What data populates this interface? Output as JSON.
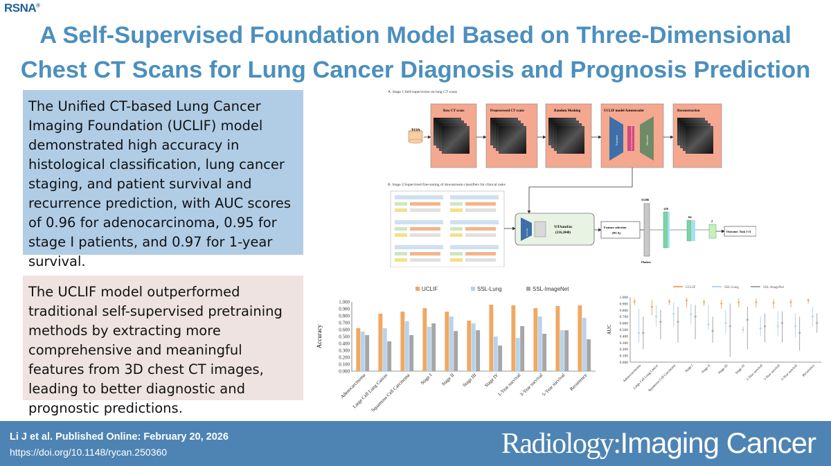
{
  "logo": {
    "text": "RSNA"
  },
  "title": {
    "line1": "A Self-Supervised Foundation Model Based on Three-Dimensional",
    "line2": "Chest CT Scans for Lung Cancer Diagnosis and Prognosis Prediction"
  },
  "summary": {
    "text1": "The Unified CT-based Lung Cancer Imaging Foundation (UCLIF) model demonstrated high accuracy in histological classification, lung cancer staging, and patient survival and recurrence prediction, with AUC scores of 0.96 for adenocarcinoma, 0.95 for stage I patients, and 0.97 for 1-year survival.",
    "text2": "The UCLIF model outperformed traditional self-supervised pretraining methods by extracting more comprehensive and meaningful features from 3D chest CT images, leading to better diagnostic and prognostic predictions."
  },
  "pipeline": {
    "stage1_title": "A. Stage 1:Self-supervision on lung CT scans",
    "stage2_title": "B. Stage 2:Supervised fine-tuning of downstream classifiers for clinical tasks",
    "tcia": "TCIA",
    "boxes": [
      "Raw CT scans",
      "Preprocessed CT scans",
      "Random Masking",
      "UCLIF model Autoencoder",
      "Reconstruction"
    ],
    "encoder": "Encoder",
    "decoder": "Decoder",
    "latent": "Compressed Representation",
    "encoder2": "Encoder",
    "vit_line1": "ViTAutoEnc",
    "vit_line2": "(216,2048)",
    "feat_line1": "Feature selection",
    "feat_line2": "(PCA)",
    "dims": [
      "55296",
      "128",
      "64",
      "2"
    ],
    "flatten": "Flatten",
    "outcome": "Outcome: Task 1-11"
  },
  "chart_data": [
    {
      "type": "bar",
      "title": "",
      "ylabel": "Accuracy",
      "xlabel": "",
      "ylim": [
        0,
        1.0
      ],
      "yticks": [
        "0.000",
        "0.100",
        "0.200",
        "0.300",
        "0.400",
        "0.500",
        "0.600",
        "0.700",
        "0.800",
        "0.900",
        "1.000"
      ],
      "categories": [
        "Adenocarcinoma",
        "Large Cell Lung Cancer",
        "Squamous Cell Carcinoma",
        "Stage I",
        "Stage II",
        "Stage III",
        "Stage IV",
        "1-Year survival",
        "3-Year survival",
        "5-Year survival",
        "Recurrence"
      ],
      "series": [
        {
          "name": "UCLIF",
          "color": "#f0a862",
          "values": [
            0.62,
            0.83,
            0.86,
            0.91,
            0.86,
            0.73,
            0.96,
            0.95,
            0.91,
            0.94,
            0.95
          ]
        },
        {
          "name": "SSL-Lung",
          "color": "#b7d3ec",
          "values": [
            0.57,
            0.62,
            0.72,
            0.64,
            0.79,
            0.69,
            0.5,
            0.48,
            0.79,
            0.59,
            0.77
          ]
        },
        {
          "name": "SSL-ImageNet",
          "color": "#a6a6a6",
          "values": [
            0.52,
            0.43,
            0.52,
            0.69,
            0.58,
            0.59,
            0.37,
            0.65,
            0.54,
            0.59,
            0.46
          ]
        }
      ]
    },
    {
      "type": "box",
      "title": "",
      "ylabel": "AUC",
      "ylim": [
        0,
        1.0
      ],
      "yticks": [
        "0.000",
        "0.100",
        "0.200",
        "0.300",
        "0.400",
        "0.500",
        "0.600",
        "0.700",
        "0.800",
        "0.900",
        "1.000"
      ],
      "categories": [
        "Adenocarcinoma",
        "Large Cell Lung Cancer",
        "Squamous Cell Carcinoma",
        "Stage I",
        "Stage II",
        "Stage III",
        "Stage IV",
        "1-Year survival",
        "3-Year survival",
        "5-Year survival",
        "Recurrence"
      ],
      "series": [
        {
          "name": "UCLIF",
          "color": "#f0a862",
          "lows": [
            0.88,
            0.72,
            0.88,
            0.84,
            0.86,
            0.82,
            0.84,
            0.84,
            0.82,
            0.84,
            0.9
          ],
          "highs": [
            0.98,
            0.96,
            0.97,
            0.99,
            0.97,
            0.96,
            0.98,
            0.98,
            0.97,
            0.97,
            0.98
          ],
          "medians": [
            0.93,
            0.85,
            0.93,
            0.95,
            0.92,
            0.9,
            0.92,
            0.92,
            0.91,
            0.92,
            0.95
          ]
        },
        {
          "name": "SSL-Lung",
          "color": "#b7d3ec",
          "lows": [
            0.3,
            0.55,
            0.55,
            0.58,
            0.5,
            0.45,
            0.45,
            0.4,
            0.4,
            0.38,
            0.55
          ],
          "highs": [
            0.82,
            0.88,
            0.92,
            0.9,
            0.88,
            0.8,
            0.55,
            0.7,
            0.78,
            0.75,
            0.85
          ],
          "medians": [
            0.45,
            0.7,
            0.74,
            0.74,
            0.58,
            0.6,
            0.5,
            0.52,
            0.55,
            0.55,
            0.7
          ]
        },
        {
          "name": "SSL-ImageNet",
          "color": "#a6a6a6",
          "lows": [
            0.2,
            0.35,
            0.3,
            0.35,
            0.3,
            0.08,
            0.2,
            0.3,
            0.3,
            0.18,
            0.45
          ],
          "highs": [
            0.7,
            0.8,
            0.85,
            0.88,
            0.7,
            0.9,
            0.85,
            0.75,
            0.78,
            0.7,
            0.75
          ],
          "medians": [
            0.45,
            0.62,
            0.62,
            0.7,
            0.48,
            0.55,
            0.65,
            0.55,
            0.6,
            0.45,
            0.6
          ]
        }
      ]
    }
  ],
  "footer": {
    "cite": "Li J et al. Published Online: February 20, 2026",
    "doi": "https://doi.org/10.1148/rycan.250360",
    "journal_a": "Radiology:",
    "journal_b": "Imaging Cancer"
  }
}
